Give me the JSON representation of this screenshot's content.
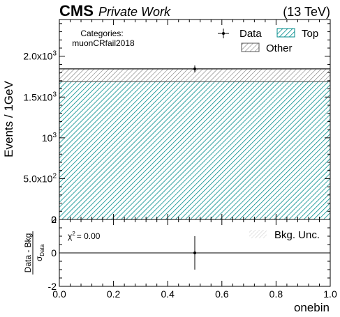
{
  "chart_data": [
    {
      "type": "bar",
      "stacked": true,
      "header": {
        "experiment": "CMS",
        "status": "Private Work",
        "energy": "(13 TeV)"
      },
      "ylabel": "Events / 1GeV",
      "xlim": [
        0.0,
        1.0
      ],
      "ylim": [
        0,
        2450
      ],
      "yticks": [
        0,
        500,
        1000,
        1500,
        2000
      ],
      "ytick_labels": [
        "0",
        "5.0x10²",
        "10³",
        "1.5x10³",
        "2.0x10³"
      ],
      "categories_box": {
        "heading": "Categories:",
        "value": "muonCRfail2018"
      },
      "bin": {
        "low": 0.0,
        "high": 1.0
      },
      "series": [
        {
          "name": "Top",
          "values": [
            1690
          ],
          "color": "#008b8b",
          "hatch": "////"
        },
        {
          "name": "Other",
          "values": [
            155
          ],
          "color": "#7a7a7a",
          "hatch": "////"
        }
      ],
      "data_points": [
        {
          "name": "Data",
          "x": 0.5,
          "y": 1845,
          "xerr": 0.5,
          "yerr": 43
        }
      ],
      "legend": {
        "position": "top-right",
        "entries": [
          "Data",
          "Top",
          "Other"
        ]
      }
    },
    {
      "type": "scatter",
      "ylabel_num": "Data - Bkg",
      "ylabel_den": "σ",
      "ylabel_den_sub": "Data",
      "xlabel": "onebin",
      "xlim": [
        0.0,
        1.0
      ],
      "ylim": [
        -2,
        2
      ],
      "xticks": [
        0.0,
        0.2,
        0.4,
        0.6,
        0.8,
        1.0
      ],
      "xtick_labels": [
        "0.0",
        "0.2",
        "0.4",
        "0.6",
        "0.8",
        "1.0"
      ],
      "yticks": [
        -2,
        0,
        2
      ],
      "ytick_labels": [
        "-2",
        "0",
        "2"
      ],
      "chi2_prefix": "χ",
      "chi2_power": "2",
      "chi2_value": "= 0.00",
      "points": [
        {
          "x": 0.5,
          "y": 0.0,
          "yerr": 1.0
        }
      ],
      "unc_band_label": "Bkg. Unc.",
      "legend": {
        "position": "top-right",
        "entries": [
          "Bkg. Unc."
        ]
      }
    }
  ]
}
